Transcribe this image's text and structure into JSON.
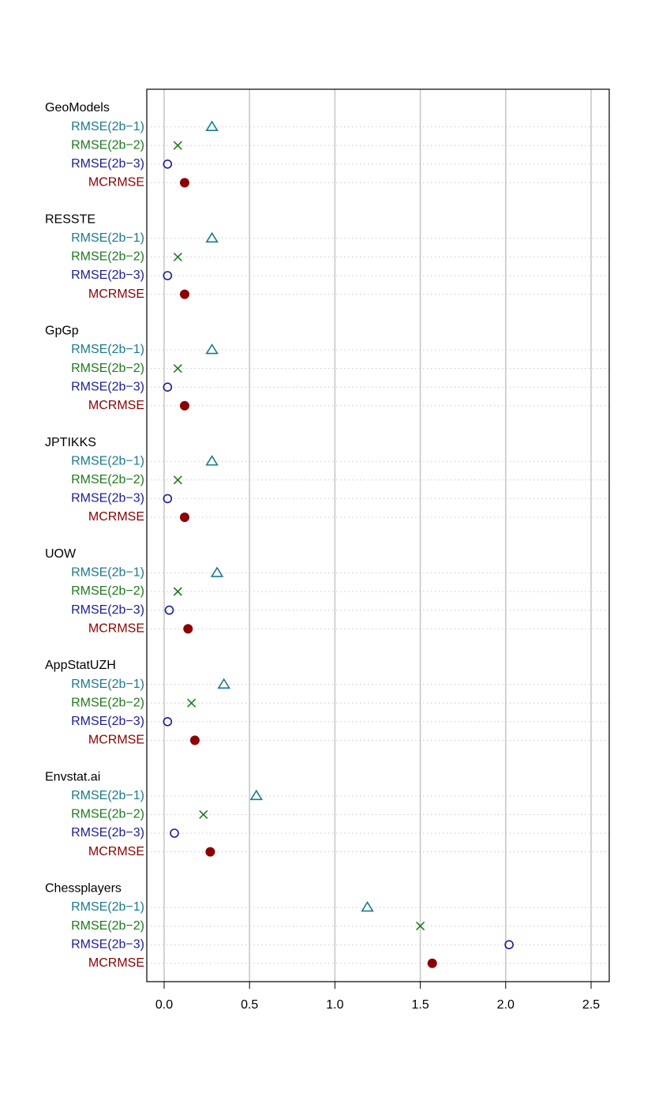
{
  "chart_data": {
    "type": "scatter",
    "subtype": "dotchart",
    "xlim": [
      -0.1,
      2.6
    ],
    "x_ticks": [
      "0.0",
      "0.5",
      "1.0",
      "1.5",
      "2.0",
      "2.5"
    ],
    "x_tick_values": [
      0.0,
      0.5,
      1.0,
      1.5,
      2.0,
      2.5
    ],
    "grid": true,
    "metrics": [
      {
        "label": "RMSE(2b−1)",
        "color": "#1b7a8c",
        "marker": "open-triangle"
      },
      {
        "label": "RMSE(2b−2)",
        "color": "#1f7a1f",
        "marker": "cross"
      },
      {
        "label": "RMSE(2b−3)",
        "color": "#1c1c96",
        "marker": "open-circle"
      },
      {
        "label": "MCRMSE",
        "color": "#8b0000",
        "marker": "filled-circle"
      }
    ],
    "groups": [
      {
        "name": "GeoModels",
        "values": [
          0.28,
          0.08,
          0.02,
          0.12
        ]
      },
      {
        "name": "RESSTE",
        "values": [
          0.28,
          0.08,
          0.02,
          0.12
        ]
      },
      {
        "name": "GpGp",
        "values": [
          0.28,
          0.08,
          0.02,
          0.12
        ]
      },
      {
        "name": "JPTIKKS",
        "values": [
          0.28,
          0.08,
          0.02,
          0.12
        ]
      },
      {
        "name": "UOW",
        "values": [
          0.31,
          0.08,
          0.03,
          0.14
        ]
      },
      {
        "name": "AppStatUZH",
        "values": [
          0.35,
          0.16,
          0.02,
          0.18
        ]
      },
      {
        "name": "Envstat.ai",
        "values": [
          0.54,
          0.23,
          0.06,
          0.27
        ]
      },
      {
        "name": "Chessplayers",
        "values": [
          1.19,
          1.5,
          2.02,
          1.57
        ]
      }
    ]
  }
}
